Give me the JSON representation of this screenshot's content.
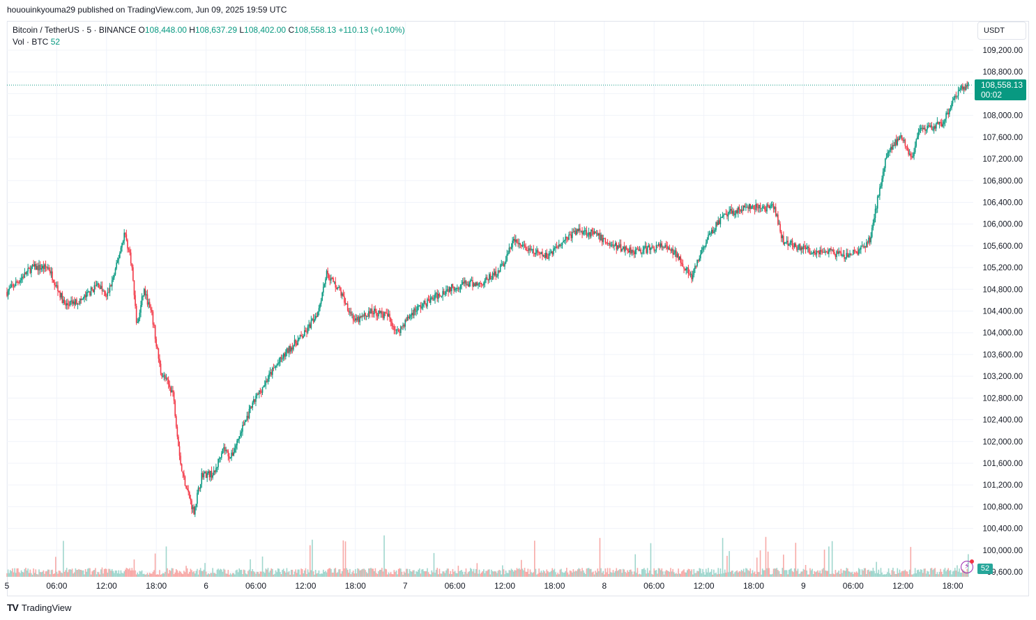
{
  "header": {
    "published_line": "hououinkyouma29 published on TradingView.com, Jun 09, 2025 19:59 UTC"
  },
  "legend": {
    "symbol": "Bitcoin / TetherUS · 5 · BINANCE",
    "open_label": "O",
    "open_value": "108,448.00",
    "high_label": "H",
    "high_value": "108,637.29",
    "low_label": "L",
    "low_value": "108,402.00",
    "close_label": "C",
    "close_value": "108,558.13",
    "change": "+110.13 (+0.10%)",
    "volume_label": "Vol · BTC",
    "volume_value": "52"
  },
  "price_scale": {
    "currency": "USDT",
    "last_price": "108,558.13",
    "countdown": "00:02",
    "volume_badge": "52"
  },
  "footer": {
    "logo_mark": "TV",
    "brand": "TradingView"
  },
  "colors": {
    "up": "#089981",
    "down": "#f23645",
    "grid": "#f0f3fa",
    "vol_up": "#9fd6cd",
    "vol_down": "#f7a9a7"
  },
  "chart_data": {
    "type": "candlestick",
    "symbol": "BTC/USDT",
    "interval": "5",
    "ylim": [
      99600,
      109600
    ],
    "y_ticks": [
      "109,200.00",
      "108,800.00",
      "108,400.00",
      "108,000.00",
      "107,600.00",
      "107,200.00",
      "106,800.00",
      "106,400.00",
      "106,000.00",
      "105,600.00",
      "105,200.00",
      "104,800.00",
      "104,400.00",
      "104,000.00",
      "103,600.00",
      "103,200.00",
      "102,800.00",
      "102,400.00",
      "102,000.00",
      "101,600.00",
      "101,200.00",
      "100,800.00",
      "100,400.00",
      "100,000.00",
      "99,600.00"
    ],
    "x_ticks": [
      "5",
      "06:00",
      "12:00",
      "18:00",
      "6",
      "06:00",
      "12:00",
      "18:00",
      "7",
      "06:00",
      "12:00",
      "18:00",
      "8",
      "06:00",
      "12:00",
      "18:00",
      "9",
      "06:00",
      "12:00",
      "18:00"
    ],
    "price_path": [
      {
        "time": "Jun 5 00:00",
        "price": 104750
      },
      {
        "time": "Jun 5 03:00",
        "price": 105200
      },
      {
        "time": "Jun 5 05:00",
        "price": 105200
      },
      {
        "time": "Jun 5 07:00",
        "price": 104500
      },
      {
        "time": "Jun 5 09:00",
        "price": 104600
      },
      {
        "time": "Jun 5 11:00",
        "price": 104900
      },
      {
        "time": "Jun 5 12:00",
        "price": 104650
      },
      {
        "time": "Jun 5 13:00",
        "price": 105100
      },
      {
        "time": "Jun 5 14:10",
        "price": 105850
      },
      {
        "time": "Jun 5 15:00",
        "price": 105300
      },
      {
        "time": "Jun 5 15:40",
        "price": 104100
      },
      {
        "time": "Jun 5 16:30",
        "price": 104800
      },
      {
        "time": "Jun 5 17:30",
        "price": 104300
      },
      {
        "time": "Jun 5 18:30",
        "price": 103300
      },
      {
        "time": "Jun 5 20:00",
        "price": 102900
      },
      {
        "time": "Jun 5 21:00",
        "price": 101500
      },
      {
        "time": "Jun 5 22:30",
        "price": 100700
      },
      {
        "time": "Jun 5 23:30",
        "price": 101400
      },
      {
        "time": "Jun 6 01:00",
        "price": 101400
      },
      {
        "time": "Jun 6 02:00",
        "price": 101900
      },
      {
        "time": "Jun 6 03:00",
        "price": 101700
      },
      {
        "time": "Jun 6 04:30",
        "price": 102300
      },
      {
        "time": "Jun 6 06:00",
        "price": 102800
      },
      {
        "time": "Jun 6 08:00",
        "price": 103300
      },
      {
        "time": "Jun 6 10:00",
        "price": 103700
      },
      {
        "time": "Jun 6 12:00",
        "price": 104000
      },
      {
        "time": "Jun 6 13:30",
        "price": 104400
      },
      {
        "time": "Jun 6 14:30",
        "price": 105100
      },
      {
        "time": "Jun 6 16:00",
        "price": 104800
      },
      {
        "time": "Jun 6 17:00",
        "price": 104500
      },
      {
        "time": "Jun 6 18:00",
        "price": 104200
      },
      {
        "time": "Jun 6 20:00",
        "price": 104400
      },
      {
        "time": "Jun 6 22:00",
        "price": 104300
      },
      {
        "time": "Jun 6 23:00",
        "price": 104000
      },
      {
        "time": "Jun 7 01:00",
        "price": 104400
      },
      {
        "time": "Jun 7 03:00",
        "price": 104600
      },
      {
        "time": "Jun 7 05:00",
        "price": 104800
      },
      {
        "time": "Jun 7 07:00",
        "price": 104900
      },
      {
        "time": "Jun 7 09:00",
        "price": 104900
      },
      {
        "time": "Jun 7 11:00",
        "price": 105100
      },
      {
        "time": "Jun 7 12:00",
        "price": 105300
      },
      {
        "time": "Jun 7 13:00",
        "price": 105700
      },
      {
        "time": "Jun 7 15:00",
        "price": 105500
      },
      {
        "time": "Jun 7 17:00",
        "price": 105400
      },
      {
        "time": "Jun 7 19:00",
        "price": 105700
      },
      {
        "time": "Jun 7 21:00",
        "price": 105900
      },
      {
        "time": "Jun 7 23:00",
        "price": 105800
      },
      {
        "time": "Jun 8 01:00",
        "price": 105600
      },
      {
        "time": "Jun 8 04:00",
        "price": 105500
      },
      {
        "time": "Jun 8 07:00",
        "price": 105600
      },
      {
        "time": "Jun 8 09:00",
        "price": 105400
      },
      {
        "time": "Jun 8 10:30",
        "price": 105000
      },
      {
        "time": "Jun 8 12:00",
        "price": 105600
      },
      {
        "time": "Jun 8 13:30",
        "price": 106000
      },
      {
        "time": "Jun 8 15:00",
        "price": 106200
      },
      {
        "time": "Jun 8 17:00",
        "price": 106300
      },
      {
        "time": "Jun 8 19:00",
        "price": 106300
      },
      {
        "time": "Jun 8 20:30",
        "price": 106300
      },
      {
        "time": "Jun 8 21:30",
        "price": 105700
      },
      {
        "time": "Jun 8 23:00",
        "price": 105600
      },
      {
        "time": "Jun 9 01:00",
        "price": 105500
      },
      {
        "time": "Jun 9 03:00",
        "price": 105500
      },
      {
        "time": "Jun 9 05:00",
        "price": 105400
      },
      {
        "time": "Jun 9 06:30",
        "price": 105500
      },
      {
        "time": "Jun 9 08:00",
        "price": 105700
      },
      {
        "time": "Jun 9 09:00",
        "price": 106500
      },
      {
        "time": "Jun 9 10:00",
        "price": 107300
      },
      {
        "time": "Jun 9 11:00",
        "price": 107500
      },
      {
        "time": "Jun 9 12:00",
        "price": 107600
      },
      {
        "time": "Jun 9 13:00",
        "price": 107200
      },
      {
        "time": "Jun 9 14:00",
        "price": 107700
      },
      {
        "time": "Jun 9 16:00",
        "price": 107800
      },
      {
        "time": "Jun 9 17:00",
        "price": 107900
      },
      {
        "time": "Jun 9 18:00",
        "price": 108300
      },
      {
        "time": "Jun 9 19:00",
        "price": 108500
      },
      {
        "time": "Jun 9 19:55",
        "price": 108558
      }
    ],
    "last_price": 108558.13,
    "grid": true,
    "legend_position": "top-left"
  }
}
